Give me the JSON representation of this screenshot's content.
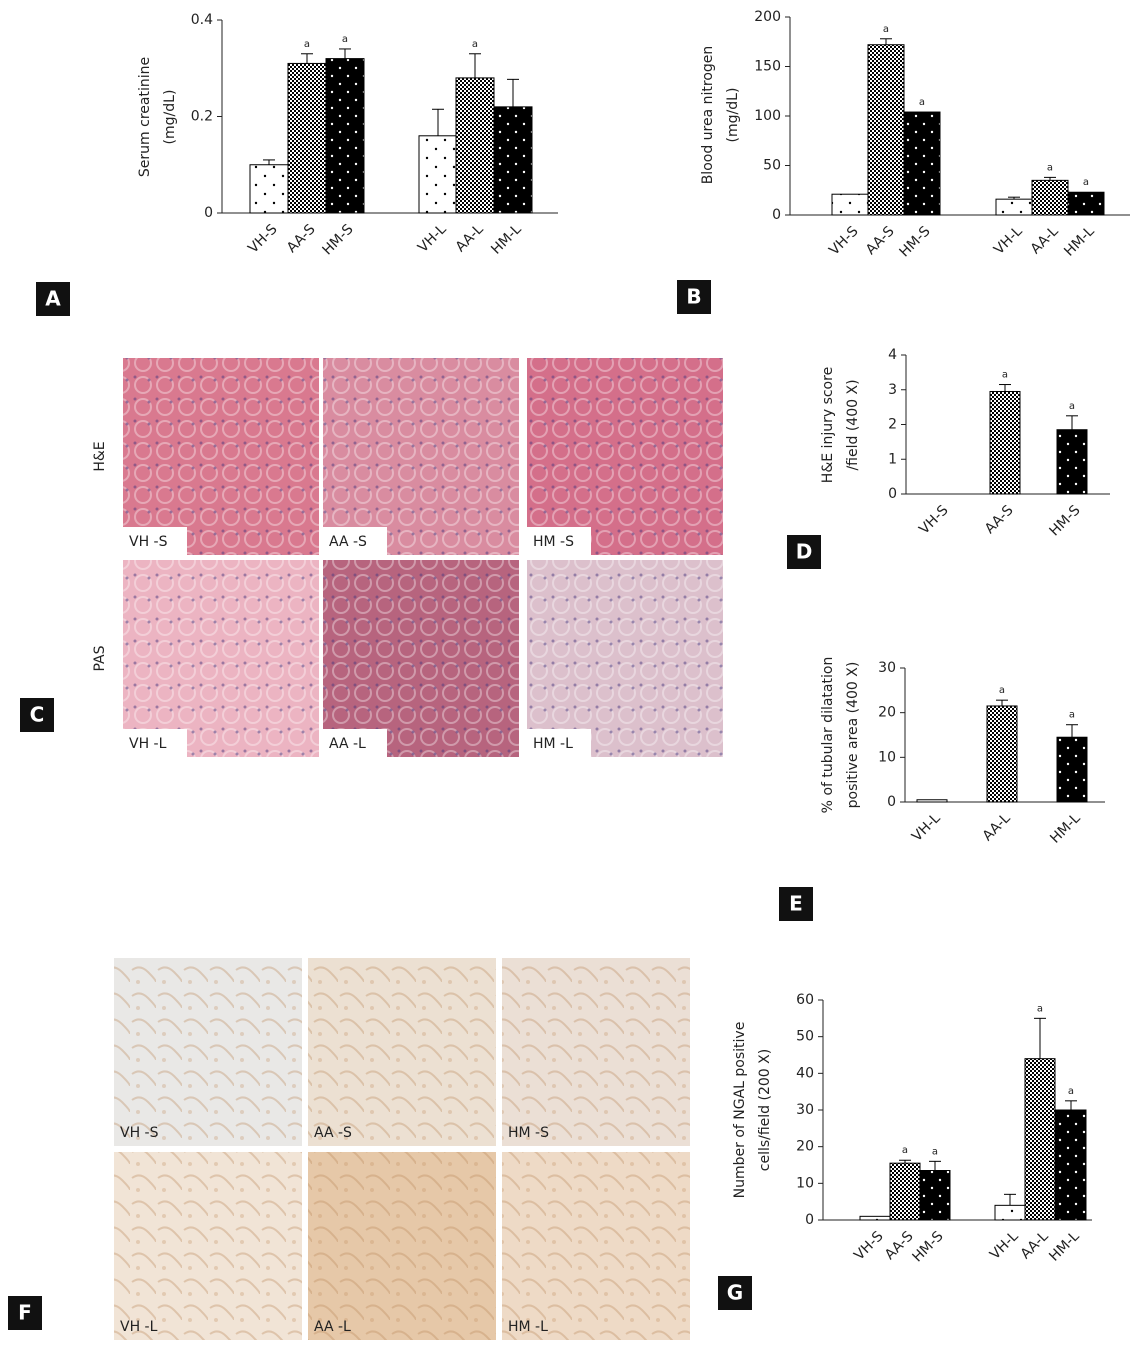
{
  "chart_data": [
    {
      "type": "bar",
      "panel": "A",
      "ylabel": [
        "Serum creatinine",
        "(mg/dL)"
      ],
      "categories": [
        "VH-S",
        "AA-S",
        "HM-S",
        "VH-L",
        "AA-L",
        "HM-L"
      ],
      "values": [
        0.1,
        0.31,
        0.32,
        0.16,
        0.28,
        0.22
      ],
      "errors": [
        0.01,
        0.02,
        0.02,
        0.055,
        0.05,
        0.057
      ],
      "annotations": [
        null,
        "a",
        "a",
        null,
        "a",
        null
      ],
      "fills": [
        "dots",
        "check",
        "black-dots",
        "dots",
        "check",
        "black-dots"
      ],
      "ylim": [
        0,
        0.4
      ],
      "yticks": [
        0,
        0.2,
        0.4
      ]
    },
    {
      "type": "bar",
      "panel": "B",
      "ylabel": [
        "Blood urea nitrogen",
        "(mg/dL)"
      ],
      "categories": [
        "VH-S",
        "AA-S",
        "HM-S",
        "VH-L",
        "AA-L",
        "HM-L"
      ],
      "values": [
        21,
        172,
        104,
        16,
        35,
        23
      ],
      "errors": [
        null,
        6,
        null,
        2,
        3,
        null
      ],
      "annotations": [
        null,
        "a",
        "a",
        null,
        "a",
        "a"
      ],
      "fills": [
        "dots",
        "check",
        "black-dots",
        "dots",
        "check",
        "black-dots"
      ],
      "ylim": [
        0,
        200
      ],
      "yticks": [
        0,
        50,
        100,
        150,
        200
      ]
    },
    {
      "type": "bar",
      "panel": "D",
      "ylabel": [
        "H&E injury score",
        "/field (400 X)"
      ],
      "categories": [
        "VH-S",
        "AA-S",
        "HM-S"
      ],
      "values": [
        0,
        2.95,
        1.85
      ],
      "errors": [
        null,
        0.2,
        0.4
      ],
      "annotations": [
        null,
        "a",
        "a"
      ],
      "fills": [
        "dots",
        "check",
        "black-dots"
      ],
      "ylim": [
        0,
        4
      ],
      "yticks": [
        0,
        1,
        2,
        3,
        4
      ]
    },
    {
      "type": "bar",
      "panel": "E",
      "ylabel": [
        "% of tubular dilatation",
        "positive area (400 X)"
      ],
      "categories": [
        "VH-L",
        "AA-L",
        "HM-L"
      ],
      "values": [
        0.5,
        21.5,
        14.5
      ],
      "errors": [
        null,
        1.3,
        2.8
      ],
      "annotations": [
        null,
        "a",
        "a"
      ],
      "fills": [
        "dots",
        "check",
        "black-dots"
      ],
      "ylim": [
        0,
        30
      ],
      "yticks": [
        0,
        10,
        20,
        30
      ]
    },
    {
      "type": "bar",
      "panel": "G",
      "ylabel": [
        "Number of NGAL positive",
        "cells/field (200 X)"
      ],
      "categories": [
        "VH-S",
        "AA-S",
        "HM-S",
        "VH-L",
        "AA-L",
        "HM-L"
      ],
      "values": [
        1,
        15.5,
        13.5,
        4,
        44,
        30
      ],
      "errors": [
        null,
        0.8,
        2.5,
        3,
        11,
        2.5
      ],
      "annotations": [
        null,
        "a",
        "a",
        null,
        "a",
        "a"
      ],
      "fills": [
        "dots",
        "check",
        "black-dots",
        "dots",
        "check",
        "black-dots"
      ],
      "ylim": [
        0,
        60
      ],
      "yticks": [
        0,
        10,
        20,
        30,
        40,
        50,
        60
      ]
    }
  ],
  "image_panels": [
    {
      "panel": "C",
      "row_labels": [
        "H&E",
        "PAS"
      ],
      "image_labels": [
        "VH -S",
        "AA -S",
        "HM -S",
        "VH -L",
        "AA -L",
        "HM -L"
      ]
    },
    {
      "panel": "F",
      "image_labels": [
        "VH -S",
        "AA -S",
        "HM -S",
        "VH -L",
        "AA -L",
        "HM -L"
      ]
    }
  ]
}
